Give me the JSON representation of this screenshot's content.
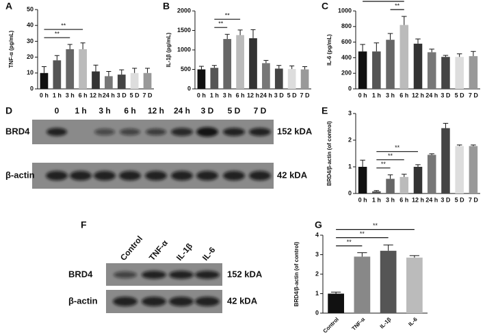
{
  "chart_data": [
    {
      "type": "bar",
      "panel": "A",
      "y_label": "TNF-α (pg/mL)",
      "categories": [
        "0 h",
        "1 h",
        "3 h",
        "6 h",
        "12 h",
        "24 h",
        "3 D",
        "5 D",
        "7 D"
      ],
      "values": [
        10,
        18,
        25,
        25,
        11,
        8,
        9,
        10,
        10
      ],
      "errors": [
        4,
        3,
        3,
        4,
        4,
        3,
        3,
        3,
        3
      ],
      "colors": [
        "#111111",
        "#555555",
        "#666666",
        "#bbbbbb",
        "#333333",
        "#777777",
        "#444444",
        "#dddddd",
        "#999999"
      ],
      "ylim": [
        0,
        50
      ],
      "yticks": [
        0,
        10,
        20,
        30,
        40,
        50
      ],
      "significance": [
        {
          "from": "0 h",
          "to": "3 h",
          "label": "**"
        },
        {
          "from": "0 h",
          "to": "6 h",
          "label": "**"
        }
      ]
    },
    {
      "type": "bar",
      "panel": "B",
      "y_label": "IL-1β (pg/mL)",
      "categories": [
        "0 h",
        "1 h",
        "3 h",
        "6 h",
        "12 h",
        "24 h",
        "3 D",
        "5 D",
        "7 D"
      ],
      "values": [
        500,
        540,
        1280,
        1380,
        1300,
        660,
        520,
        510,
        500
      ],
      "errors": [
        80,
        60,
        120,
        130,
        220,
        70,
        80,
        80,
        70
      ],
      "colors": [
        "#111111",
        "#555555",
        "#666666",
        "#bbbbbb",
        "#333333",
        "#777777",
        "#444444",
        "#dddddd",
        "#999999"
      ],
      "ylim": [
        0,
        2000
      ],
      "yticks": [
        0,
        500,
        1000,
        1500,
        2000
      ],
      "significance": [
        {
          "from": "1 h",
          "to": "3 h",
          "label": "**"
        },
        {
          "from": "1 h",
          "to": "6 h",
          "label": "**"
        }
      ]
    },
    {
      "type": "bar",
      "panel": "C",
      "y_label": "IL-6 (pg/mL)",
      "categories": [
        "0 h",
        "1 h",
        "3 h",
        "6 h",
        "12 h",
        "24 h",
        "3 D",
        "5 D",
        "7 D"
      ],
      "values": [
        480,
        480,
        630,
        820,
        580,
        470,
        410,
        410,
        420
      ],
      "errors": [
        90,
        110,
        80,
        110,
        60,
        40,
        20,
        40,
        60
      ],
      "colors": [
        "#111111",
        "#555555",
        "#666666",
        "#bbbbbb",
        "#333333",
        "#777777",
        "#444444",
        "#dddddd",
        "#999999"
      ],
      "ylim": [
        0,
        1000
      ],
      "yticks": [
        0,
        200,
        400,
        600,
        800,
        1000
      ],
      "significance": [
        {
          "from": "3 h",
          "to": "6 h",
          "label": "**"
        },
        {
          "from": "0 h",
          "to": "6 h",
          "label": "**"
        }
      ]
    },
    {
      "type": "bar",
      "panel": "E",
      "y_label": "BRD4/β-actin (of control)",
      "categories": [
        "0 h",
        "1 h",
        "3 h",
        "6 h",
        "12 h",
        "24 h",
        "3 D",
        "5 D",
        "7 D"
      ],
      "values": [
        1.0,
        0.08,
        0.55,
        0.62,
        1.0,
        1.45,
        2.45,
        1.78,
        1.78
      ],
      "errors": [
        0.25,
        0.03,
        0.15,
        0.1,
        0.08,
        0.04,
        0.18,
        0.04,
        0.04
      ],
      "colors": [
        "#111111",
        "#555555",
        "#666666",
        "#bbbbbb",
        "#333333",
        "#777777",
        "#444444",
        "#dddddd",
        "#999999"
      ],
      "ylim": [
        0,
        3
      ],
      "yticks": [
        0,
        1,
        2,
        3
      ],
      "significance": [
        {
          "from": "1 h",
          "to": "3 h",
          "label": "**"
        },
        {
          "from": "1 h",
          "to": "6 h",
          "label": "**"
        },
        {
          "from": "1 h",
          "to": "12 h",
          "label": "**"
        }
      ]
    },
    {
      "type": "bar",
      "panel": "G",
      "y_label": "BRD4/β-actin (of control)",
      "categories": [
        "Control",
        "TNF-α",
        "IL-1β",
        "IL-6"
      ],
      "values": [
        1.0,
        2.9,
        3.2,
        2.85
      ],
      "errors": [
        0.08,
        0.2,
        0.3,
        0.1
      ],
      "colors": [
        "#111111",
        "#888888",
        "#555555",
        "#bbbbbb"
      ],
      "ylim": [
        0,
        4
      ],
      "yticks": [
        0,
        1,
        2,
        3,
        4
      ],
      "significance": [
        {
          "from": "Control",
          "to": "TNF-α",
          "label": "**"
        },
        {
          "from": "Control",
          "to": "IL-1β",
          "label": "**"
        },
        {
          "from": "Control",
          "to": "IL-6",
          "label": "**"
        }
      ]
    }
  ],
  "blots": [
    {
      "panel": "D",
      "lanes": [
        "0",
        "1 h",
        "3 h",
        "6 h",
        "12 h",
        "24 h",
        "3 D",
        "5 D",
        "7 D"
      ],
      "rows": [
        {
          "label": "BRD4",
          "size": "152 kDA"
        },
        {
          "label": "β-actin",
          "size": "42 kDA"
        }
      ]
    },
    {
      "panel": "F",
      "lanes": [
        "Control",
        "TNF-α",
        "IL-1β",
        "IL-6"
      ],
      "rows": [
        {
          "label": "BRD4",
          "size": "152 kDA"
        },
        {
          "label": "β-actin",
          "size": "42 kDA"
        }
      ]
    }
  ]
}
